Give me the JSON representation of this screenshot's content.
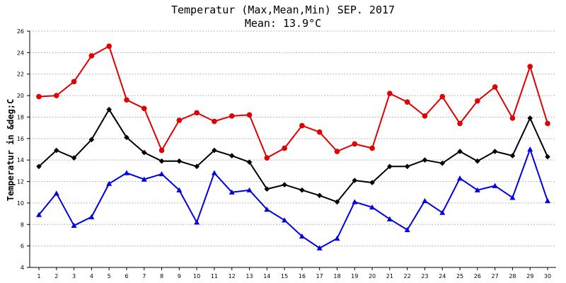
{
  "chart_data": {
    "type": "line",
    "title": "Temperatur (Max,Mean,Min) SEP. 2017",
    "subtitle": "Mean: 13.9°C",
    "ylabel": "Temperatur in &deg;C",
    "xlabel": "",
    "x": [
      1,
      2,
      3,
      4,
      5,
      6,
      7,
      8,
      9,
      10,
      11,
      12,
      13,
      14,
      15,
      16,
      17,
      18,
      19,
      20,
      21,
      22,
      23,
      24,
      25,
      26,
      27,
      28,
      29,
      30
    ],
    "ylim": [
      4,
      26
    ],
    "yticks": [
      4,
      6,
      8,
      10,
      12,
      14,
      16,
      18,
      20,
      22,
      24,
      26
    ],
    "grid": true,
    "legend": "none",
    "series": [
      {
        "color": "#e00000",
        "marker": "circle",
        "values": [
          19.9,
          20.0,
          21.3,
          23.7,
          24.6,
          19.6,
          18.8,
          14.9,
          17.7,
          18.4,
          17.6,
          18.1,
          18.2,
          14.2,
          15.1,
          17.2,
          16.6,
          14.8,
          15.5,
          15.1,
          20.2,
          19.4,
          18.1,
          19.9,
          17.4,
          19.5,
          20.8,
          17.9,
          22.7,
          17.4
        ]
      },
      {
        "color": "#000000",
        "marker": "diamond",
        "values": [
          13.4,
          14.9,
          14.2,
          15.9,
          18.7,
          16.1,
          14.7,
          13.9,
          13.9,
          13.4,
          14.9,
          14.4,
          13.8,
          11.3,
          11.7,
          11.2,
          10.7,
          10.1,
          12.1,
          11.9,
          13.4,
          13.4,
          14.0,
          13.7,
          14.8,
          13.9,
          14.8,
          14.4,
          17.9,
          14.3
        ]
      },
      {
        "color": "#0000e0",
        "marker": "triangle",
        "values": [
          8.9,
          10.9,
          7.9,
          8.7,
          11.8,
          12.8,
          12.2,
          12.7,
          11.2,
          8.2,
          12.8,
          11.0,
          11.2,
          9.4,
          8.4,
          6.9,
          5.8,
          6.7,
          10.1,
          9.6,
          8.5,
          7.5,
          10.2,
          9.1,
          12.3,
          11.2,
          11.6,
          10.5,
          15.0,
          10.2
        ]
      }
    ]
  }
}
